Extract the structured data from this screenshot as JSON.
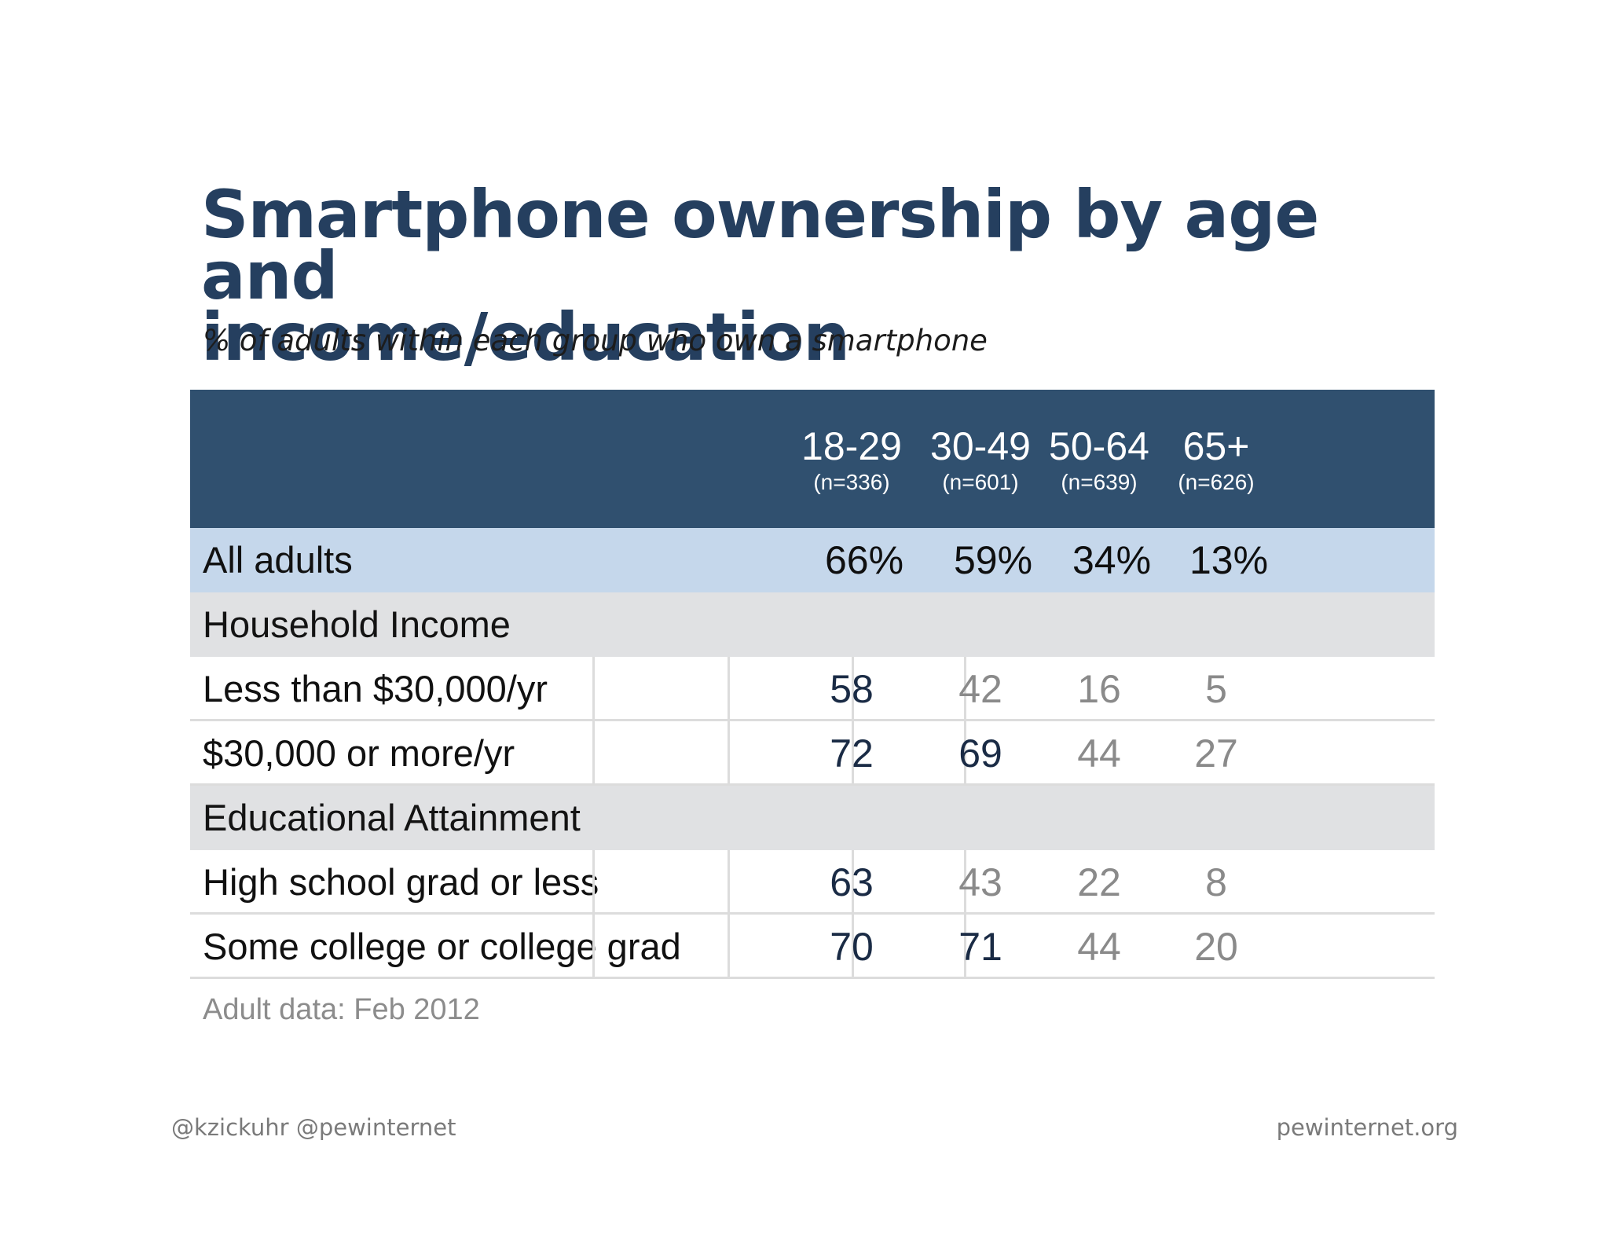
{
  "chart_data": {
    "type": "table",
    "title_line1": "Smartphone ownership by age and",
    "title_line2": "income/education",
    "subtitle": "% of adults within each group who own a smartphone",
    "columns": [
      {
        "label": "18-29",
        "n": "(n=336)"
      },
      {
        "label": "30-49",
        "n": "(n=601)"
      },
      {
        "label": "50-64",
        "n": "(n=639)"
      },
      {
        "label": "65+",
        "n": "(n=626)"
      }
    ],
    "rows": [
      {
        "type": "all",
        "label": "All adults",
        "values": [
          "66%",
          "59%",
          "34%",
          "13%"
        ]
      },
      {
        "type": "section",
        "label": "Household Income"
      },
      {
        "type": "data",
        "label": "Less than $30,000/yr",
        "values": [
          "58",
          "42",
          "16",
          "5"
        ],
        "emphasis": [
          "dark",
          "light",
          "light",
          "light"
        ]
      },
      {
        "type": "data",
        "label": "$30,000 or more/yr",
        "values": [
          "72",
          "69",
          "44",
          "27"
        ],
        "emphasis": [
          "dark",
          "dark",
          "light",
          "light"
        ]
      },
      {
        "type": "section",
        "label": "Educational Attainment"
      },
      {
        "type": "data",
        "label": "High school grad or less",
        "values": [
          "63",
          "43",
          "22",
          "8"
        ],
        "emphasis": [
          "dark",
          "light",
          "light",
          "light"
        ]
      },
      {
        "type": "data",
        "label": "Some college or college grad",
        "values": [
          "70",
          "71",
          "44",
          "20"
        ],
        "emphasis": [
          "dark",
          "dark",
          "light",
          "light"
        ]
      }
    ],
    "note": "Adult data: Feb 2012"
  },
  "footer": {
    "left": "@kzickuhr @pewinternet",
    "right": "pewinternet.org"
  },
  "colors": {
    "header_bg": "#30506f",
    "all_row_bg": "#c5d7eb",
    "section_bg": "#e0e1e3",
    "dark_value": "#1a2b45",
    "light_value": "#8a8a8a"
  }
}
